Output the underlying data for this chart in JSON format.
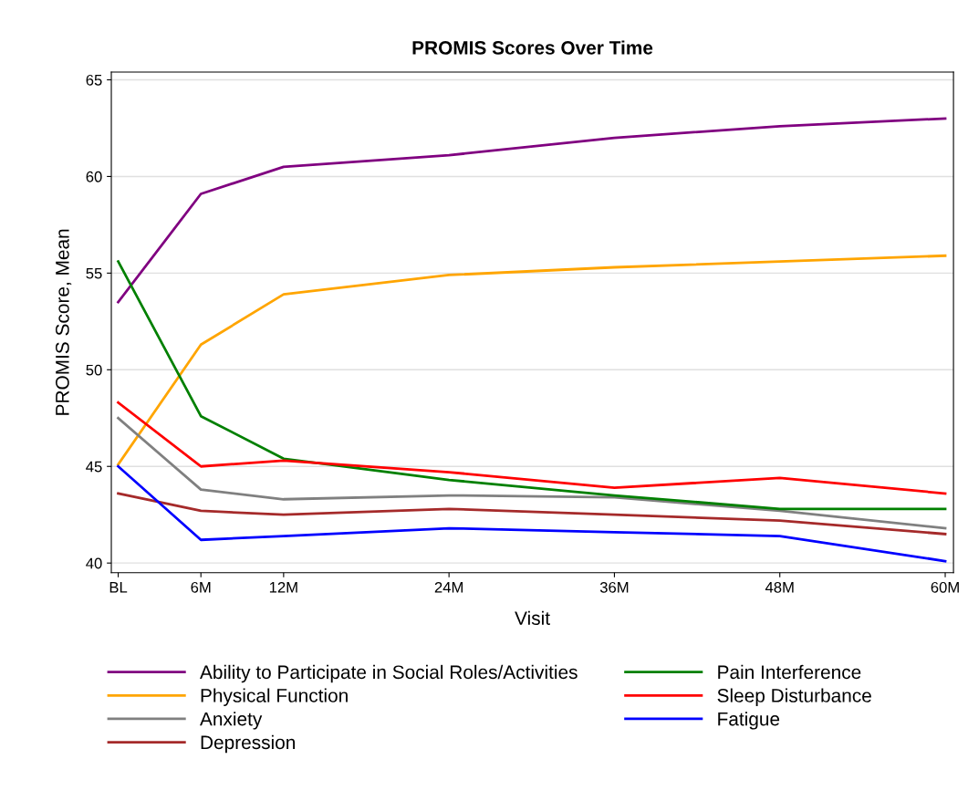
{
  "chart_data": {
    "type": "line",
    "title": "PROMIS Scores Over Time",
    "xlabel": "Visit",
    "ylabel": "PROMIS Score, Mean",
    "x": [
      0,
      6,
      12,
      24,
      36,
      48,
      60
    ],
    "xlim": [
      -0.5,
      60.6
    ],
    "xticks": [
      {
        "value": 0,
        "label": "BL"
      },
      {
        "value": 6,
        "label": "6M"
      },
      {
        "value": 12,
        "label": "12M"
      },
      {
        "value": 24,
        "label": "24M"
      },
      {
        "value": 36,
        "label": "36M"
      },
      {
        "value": 48,
        "label": "48M"
      },
      {
        "value": 60,
        "label": "60M"
      }
    ],
    "ylim": [
      39.5,
      65.4
    ],
    "yticks": [
      40,
      45,
      50,
      55,
      60,
      65
    ],
    "grid": "y",
    "legend": "bottom",
    "marker": "none",
    "line_style": "solid",
    "series": [
      {
        "name": "Ability to Participate in Social Roles/Activities",
        "color": "#800080",
        "values": [
          53.5,
          59.1,
          60.5,
          61.1,
          62.0,
          62.6,
          63.0
        ]
      },
      {
        "name": "Physical Function",
        "color": "#ffa500",
        "values": [
          45.1,
          51.3,
          53.9,
          54.9,
          55.3,
          55.6,
          55.9
        ]
      },
      {
        "name": "Anxiety",
        "color": "#808080",
        "values": [
          47.5,
          43.8,
          43.3,
          43.5,
          43.4,
          42.7,
          41.8
        ]
      },
      {
        "name": "Depression",
        "color": "#a52a2a",
        "values": [
          43.6,
          42.7,
          42.5,
          42.8,
          42.5,
          42.2,
          41.5
        ]
      },
      {
        "name": "Pain Interference",
        "color": "#008000",
        "values": [
          55.6,
          47.6,
          45.4,
          44.3,
          43.5,
          42.8,
          42.8
        ]
      },
      {
        "name": "Sleep Disturbance",
        "color": "#ff0000",
        "values": [
          48.3,
          45.0,
          45.3,
          44.7,
          43.9,
          44.4,
          43.6
        ]
      },
      {
        "name": "Fatigue",
        "color": "#0000ff",
        "values": [
          45.0,
          41.2,
          41.4,
          41.8,
          41.6,
          41.4,
          40.1
        ]
      }
    ]
  }
}
